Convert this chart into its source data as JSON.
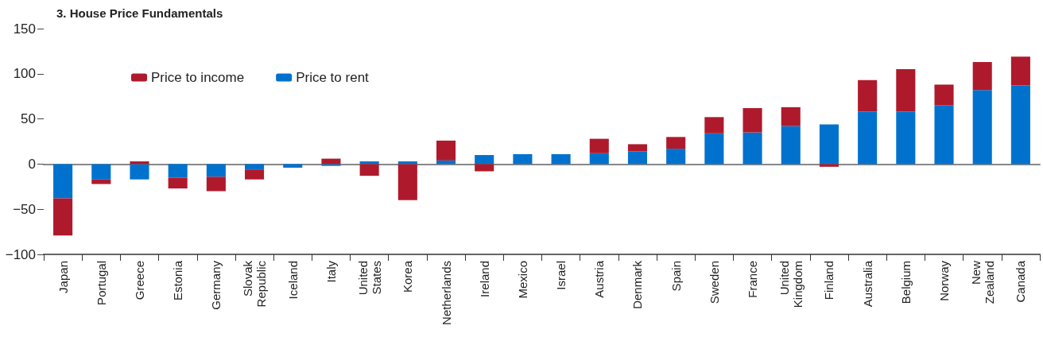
{
  "chart_data": {
    "type": "bar",
    "title": "3. House Price Fundamentals",
    "categories": [
      "Japan",
      "Portugal",
      "Greece",
      "Estonia",
      "Germany",
      "Slovak Republic",
      "Iceland",
      "Italy",
      "United States",
      "Korea",
      "Netherlands",
      "Ireland",
      "Mexico",
      "Israel",
      "Austria",
      "Denmark",
      "Spain",
      "Sweden",
      "France",
      "United Kingdom",
      "Finland",
      "Australia",
      "Belgium",
      "Norway",
      "New Zealand",
      "Canada"
    ],
    "series": [
      {
        "name": "Price to rent",
        "color": "#0072ce",
        "values": [
          -38,
          -17,
          -17,
          -15,
          -14,
          -6,
          -4,
          -2,
          3,
          3,
          4,
          10,
          11,
          11,
          12,
          14,
          17,
          34,
          35,
          42,
          44,
          58,
          58,
          65,
          82,
          87
        ]
      },
      {
        "name": "Price to income",
        "color": "#ae1a2c",
        "values": [
          -41,
          -5,
          3,
          -12,
          -16,
          -11,
          null,
          6,
          -13,
          -40,
          22,
          -8,
          null,
          null,
          16,
          8,
          13,
          18,
          27,
          21,
          -3,
          35,
          47,
          23,
          31,
          32
        ]
      }
    ],
    "stacked": true,
    "ylim": [
      -100,
      150
    ],
    "yticks": [
      -100,
      -50,
      0,
      50,
      100,
      150
    ],
    "legend": "top left"
  }
}
